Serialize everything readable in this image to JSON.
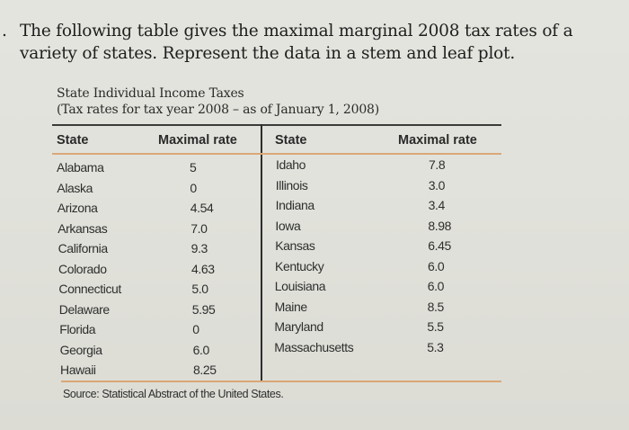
{
  "question": {
    "number_mark": ".",
    "line1": "The following table gives the maximal marginal 2008 tax rates of a",
    "line2": "variety of states. Represent the data in a stem and leaf plot."
  },
  "table": {
    "title": "State Individual Income Taxes",
    "subtitle": "(Tax rates for tax year 2008 – as of January 1, 2008)",
    "headers": [
      "State",
      "Maximal rate",
      "State",
      "Maximal rate"
    ],
    "left_rows": [
      {
        "state": "Alabama",
        "rate": "5"
      },
      {
        "state": "Alaska",
        "rate": "0"
      },
      {
        "state": "Arizona",
        "rate": "4.54"
      },
      {
        "state": "Arkansas",
        "rate": "7.0"
      },
      {
        "state": "California",
        "rate": "9.3"
      },
      {
        "state": "Colorado",
        "rate": "4.63"
      },
      {
        "state": "Connecticut",
        "rate": "5.0"
      },
      {
        "state": "Delaware",
        "rate": "5.95"
      },
      {
        "state": "Florida",
        "rate": "0"
      },
      {
        "state": "Georgia",
        "rate": "6.0"
      },
      {
        "state": "Hawaii",
        "rate": "8.25"
      }
    ],
    "right_rows": [
      {
        "state": "Idaho",
        "rate": "7.8"
      },
      {
        "state": "Illinois",
        "rate": "3.0"
      },
      {
        "state": "Indiana",
        "rate": "3.4"
      },
      {
        "state": "Iowa",
        "rate": "8.98"
      },
      {
        "state": "Kansas",
        "rate": "6.45"
      },
      {
        "state": "Kentucky",
        "rate": "6.0"
      },
      {
        "state": "Louisiana",
        "rate": "6.0"
      },
      {
        "state": "Maine",
        "rate": "8.5"
      },
      {
        "state": "Maryland",
        "rate": "5.5"
      },
      {
        "state": "Massachusetts",
        "rate": "5.3"
      }
    ],
    "source": "Source: Statistical Abstract of the United States."
  }
}
